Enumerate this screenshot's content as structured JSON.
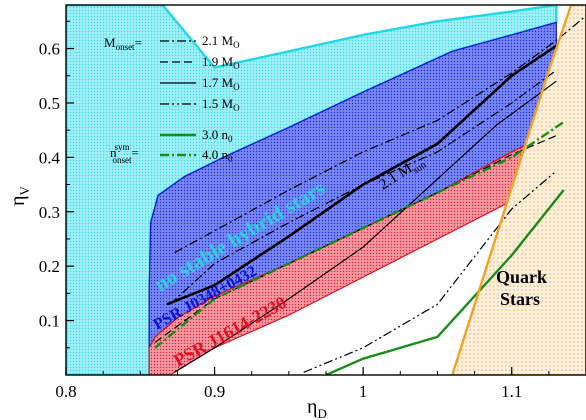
{
  "chart_data": {
    "type": "line",
    "title": "",
    "xlabel": "η",
    "xlabel_sub": "D",
    "ylabel": "η",
    "ylabel_sub": "V",
    "xlim": [
      0.8,
      1.15
    ],
    "ylim": [
      0.0,
      0.68
    ],
    "x_ticks": [
      "0.8",
      "0.9",
      "1",
      "1.1"
    ],
    "y_ticks": [
      "0.1",
      "0.2",
      "0.3",
      "0.4",
      "0.5",
      "0.6"
    ],
    "grid": false,
    "legend_position": "top-left",
    "legend": {
      "monset_prefix": "M",
      "monset_sub": "onset",
      "nonset_prefix": "n",
      "nonset_sup": "sym",
      "nonset_sub": "onset",
      "equals": "=",
      "entries": [
        {
          "key": "2.1",
          "label": "2.1 M",
          "unit_sub": "O",
          "style": "dash-dot",
          "color": "#000000",
          "width": 1.2
        },
        {
          "key": "1.9",
          "label": "1.9 M",
          "unit_sub": "O",
          "style": "dashed",
          "color": "#000000",
          "width": 1.2
        },
        {
          "key": "1.7",
          "label": "1.7 M",
          "unit_sub": "O",
          "style": "solid",
          "color": "#000000",
          "width": 1.2
        },
        {
          "key": "1.5",
          "label": "1.5 M",
          "unit_sub": "O",
          "style": "dash-dot-dot",
          "color": "#000000",
          "width": 1.2
        },
        {
          "key": "3.0n",
          "label": "3.0 n",
          "unit_sub": "0",
          "style": "solid",
          "color": "#1a8c1a",
          "width": 2.4
        },
        {
          "key": "4.0n",
          "label": "4.0 n",
          "unit_sub": "0",
          "style": "dash-dot",
          "color": "#1a8c1a",
          "width": 2.4
        }
      ]
    },
    "regions": [
      {
        "name": "no stable hybrid stars",
        "color": "#9ff0f6",
        "edge": "#22d8e8",
        "points": [
          [
            0.8,
            0.0
          ],
          [
            0.8,
            0.68
          ],
          [
            0.865,
            0.68
          ],
          [
            0.9,
            0.565
          ],
          [
            0.95,
            0.595
          ],
          [
            1.0,
            0.625
          ],
          [
            1.05,
            0.65
          ],
          [
            1.1,
            0.668
          ],
          [
            1.13,
            0.68
          ],
          [
            1.13,
            0.648
          ],
          [
            1.1,
            0.625
          ],
          [
            1.06,
            0.595
          ],
          [
            1.0,
            0.52
          ],
          [
            0.95,
            0.455
          ],
          [
            0.91,
            0.405
          ],
          [
            0.88,
            0.365
          ],
          [
            0.862,
            0.33
          ],
          [
            0.857,
            0.28
          ],
          [
            0.856,
            0.0
          ]
        ]
      },
      {
        "name": "PSR J0348+0432",
        "color": "#5c6cf0",
        "edge": "#1010d0",
        "points": [
          [
            0.856,
            0.05
          ],
          [
            0.86,
            0.07
          ],
          [
            0.875,
            0.105
          ],
          [
            0.9,
            0.145
          ],
          [
            0.95,
            0.205
          ],
          [
            1.0,
            0.27
          ],
          [
            1.05,
            0.335
          ],
          [
            1.1,
            0.41
          ],
          [
            1.13,
            0.45
          ],
          [
            1.13,
            0.648
          ],
          [
            1.1,
            0.625
          ],
          [
            1.06,
            0.595
          ],
          [
            1.0,
            0.52
          ],
          [
            0.95,
            0.455
          ],
          [
            0.91,
            0.405
          ],
          [
            0.88,
            0.365
          ],
          [
            0.862,
            0.33
          ],
          [
            0.857,
            0.28
          ],
          [
            0.856,
            0.16
          ]
        ]
      },
      {
        "name": "PSR J1614-2230",
        "color": "#f46c7a",
        "edge": "#e01020",
        "points": [
          [
            0.856,
            0.0
          ],
          [
            0.87,
            0.0
          ],
          [
            0.9,
            0.05
          ],
          [
            0.95,
            0.11
          ],
          [
            1.0,
            0.18
          ],
          [
            1.05,
            0.25
          ],
          [
            1.1,
            0.32
          ],
          [
            1.135,
            0.365
          ],
          [
            1.14,
            0.45
          ],
          [
            1.13,
            0.45
          ],
          [
            1.1,
            0.41
          ],
          [
            1.05,
            0.335
          ],
          [
            1.0,
            0.27
          ],
          [
            0.95,
            0.205
          ],
          [
            0.9,
            0.145
          ],
          [
            0.875,
            0.105
          ],
          [
            0.86,
            0.07
          ],
          [
            0.856,
            0.05
          ]
        ]
      },
      {
        "name": "Quark Stars",
        "color": "#fbe2c0",
        "edge": "#f5a020",
        "points": [
          [
            1.06,
            0.0
          ],
          [
            1.15,
            0.0
          ],
          [
            1.15,
            0.68
          ],
          [
            1.14,
            0.68
          ],
          [
            1.125,
            0.56
          ]
        ]
      }
    ],
    "series": [
      {
        "key": "2.1",
        "points": [
          [
            0.873,
            0.225
          ],
          [
            0.9,
            0.265
          ],
          [
            0.95,
            0.34
          ],
          [
            1.0,
            0.41
          ],
          [
            1.05,
            0.468
          ],
          [
            1.1,
            0.555
          ],
          [
            1.13,
            0.615
          ],
          [
            1.15,
            0.66
          ]
        ]
      },
      {
        "key": "1.9",
        "points": [
          [
            0.86,
            0.06
          ],
          [
            0.88,
            0.1
          ],
          [
            0.9,
            0.14
          ],
          [
            0.95,
            0.205
          ],
          [
            1.0,
            0.27
          ],
          [
            1.05,
            0.335
          ],
          [
            1.1,
            0.405
          ],
          [
            1.13,
            0.44
          ]
        ]
      },
      {
        "key": "1.7",
        "points": [
          [
            0.873,
            0.005
          ],
          [
            0.9,
            0.05
          ],
          [
            0.95,
            0.14
          ],
          [
            1.0,
            0.235
          ],
          [
            1.05,
            0.36
          ],
          [
            1.09,
            0.46
          ],
          [
            1.13,
            0.54
          ]
        ]
      },
      {
        "key": "1.5",
        "points": [
          [
            0.96,
            0.005
          ],
          [
            1.0,
            0.05
          ],
          [
            1.05,
            0.13
          ],
          [
            1.1,
            0.305
          ],
          [
            1.13,
            0.375
          ]
        ]
      },
      {
        "key": "3.0n",
        "points": [
          [
            0.975,
            0.0
          ],
          [
            1.0,
            0.03
          ],
          [
            1.05,
            0.07
          ],
          [
            1.1,
            0.22
          ],
          [
            1.135,
            0.34
          ]
        ]
      },
      {
        "key": "4.0n",
        "points": [
          [
            0.86,
            0.05
          ],
          [
            0.9,
            0.14
          ],
          [
            0.95,
            0.205
          ],
          [
            1.0,
            0.27
          ],
          [
            1.05,
            0.335
          ],
          [
            1.1,
            0.4
          ],
          [
            1.135,
            0.465
          ]
        ]
      },
      {
        "key": "2.1sym",
        "points": [
          [
            0.87,
            0.13
          ],
          [
            0.9,
            0.205
          ],
          [
            0.95,
            0.28
          ],
          [
            1.0,
            0.35
          ],
          [
            1.05,
            0.41
          ],
          [
            1.1,
            0.5
          ],
          [
            1.13,
            0.56
          ]
        ]
      }
    ],
    "extra_lines": [
      {
        "key": "2.1msun",
        "color": "#000000",
        "width": 2.6,
        "points": [
          [
            0.868,
            0.13
          ],
          [
            0.9,
            0.165
          ],
          [
            0.95,
            0.255
          ],
          [
            1.0,
            0.35
          ],
          [
            1.05,
            0.425
          ],
          [
            1.1,
            0.55
          ],
          [
            1.13,
            0.605
          ]
        ]
      },
      {
        "key": "quark-left",
        "color": "#f5a020",
        "width": 2.4,
        "points": [
          [
            1.06,
            0.0
          ],
          [
            1.125,
            0.56
          ],
          [
            1.14,
            0.68
          ]
        ]
      }
    ],
    "annotations": [
      {
        "key": "no_stable",
        "text": "no stable hybrid stars",
        "color": "#2ad0de"
      },
      {
        "key": "psr0348",
        "text": "PSR J0348+0432",
        "color": "#1010d0"
      },
      {
        "key": "psr1614",
        "text": "PSR J1614-2230",
        "color": "#e01020"
      },
      {
        "key": "quark1",
        "text": "Quark",
        "color": "#000000"
      },
      {
        "key": "quark2",
        "text": "Stars",
        "color": "#000000"
      },
      {
        "key": "msun_label",
        "text": "2.1 M",
        "sub": "sun",
        "color": "#000000"
      }
    ]
  }
}
